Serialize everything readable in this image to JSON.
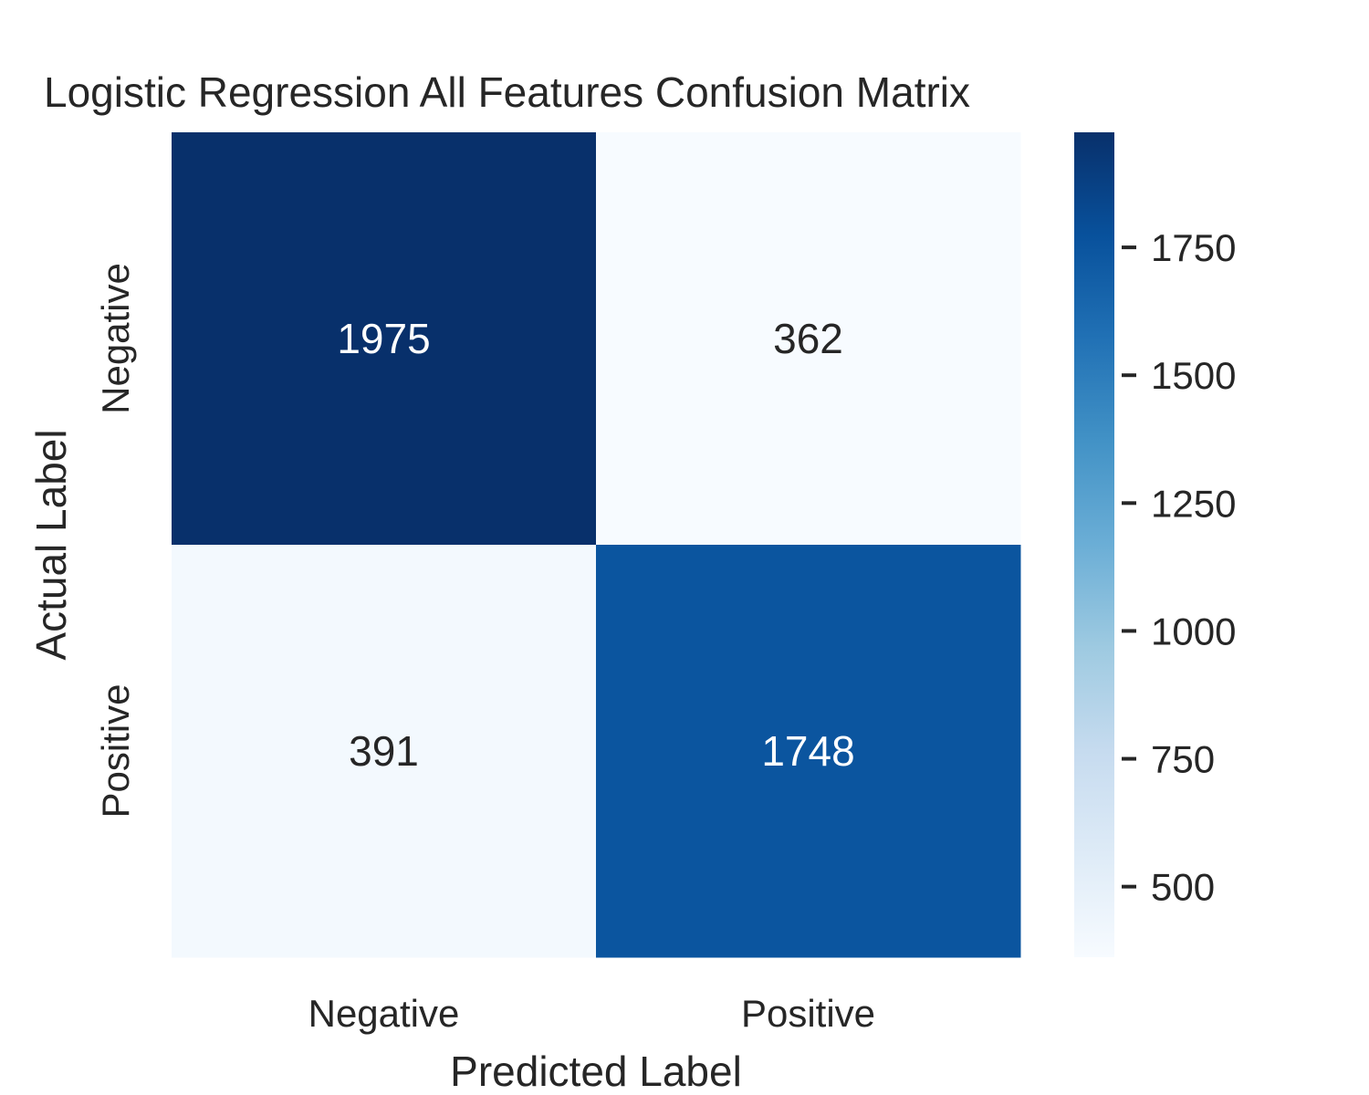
{
  "chart_data": {
    "type": "heatmap",
    "title": "Logistic Regression All Features Confusion Matrix",
    "xlabel": "Predicted Label",
    "ylabel": "Actual Label",
    "x_categories": [
      "Negative",
      "Positive"
    ],
    "y_categories": [
      "Negative",
      "Positive"
    ],
    "values": [
      [
        1975,
        362
      ],
      [
        391,
        1748
      ]
    ],
    "colorbar": {
      "min": 362,
      "max": 1975,
      "ticks": [
        500,
        750,
        1000,
        1250,
        1500,
        1750
      ],
      "colormap": "Blues",
      "position": "right"
    },
    "grid": false,
    "colors": {
      "text_dark": "#262626",
      "text_light": "#ffffff",
      "blues_scale": [
        "#f7fbff",
        "#deebf7",
        "#c6dbef",
        "#9ecae1",
        "#6baed6",
        "#4292c6",
        "#2171b5",
        "#08519c",
        "#08306b"
      ]
    }
  }
}
